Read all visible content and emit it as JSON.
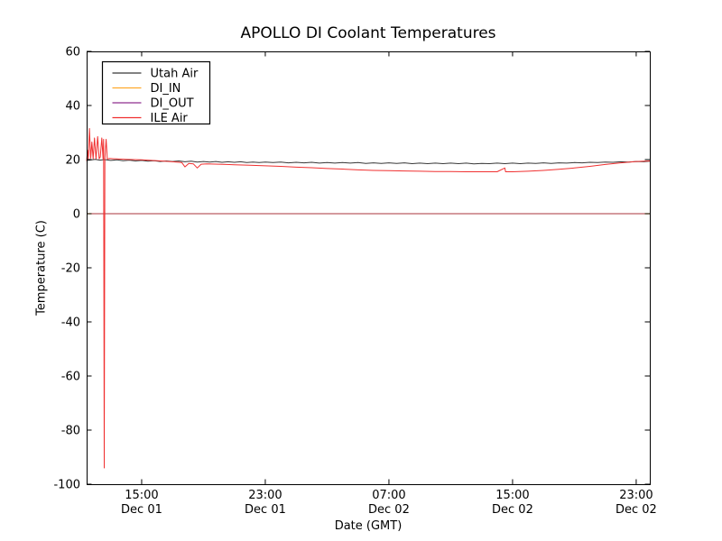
{
  "chart_data": {
    "type": "line",
    "title": "APOLLO DI Coolant Temperatures",
    "xlabel": "Date (GMT)",
    "ylabel": "Temperature (C)",
    "x_unit": "hours since Dec 01 00:00 GMT",
    "xlim": [
      11.44,
      47.88
    ],
    "ylim": [
      -100,
      60
    ],
    "grid": false,
    "frame_color": "#000000",
    "x_ticks": [
      {
        "hour": 15,
        "time": "15:00",
        "date": "Dec 01"
      },
      {
        "hour": 23,
        "time": "23:00",
        "date": "Dec 01"
      },
      {
        "hour": 31,
        "time": "07:00",
        "date": "Dec 02"
      },
      {
        "hour": 39,
        "time": "15:00",
        "date": "Dec 02"
      },
      {
        "hour": 47,
        "time": "23:00",
        "date": "Dec 02"
      }
    ],
    "y_ticks": [
      {
        "value": 60,
        "label": "60"
      },
      {
        "value": 40,
        "label": "40"
      },
      {
        "value": 20,
        "label": "20"
      },
      {
        "value": 0,
        "label": "0"
      },
      {
        "value": -20,
        "label": "-20"
      },
      {
        "value": -40,
        "label": "-40"
      },
      {
        "value": -60,
        "label": "-60"
      },
      {
        "value": -80,
        "label": "-80"
      },
      {
        "value": -100,
        "label": "-100"
      }
    ],
    "legend": {
      "position": "upper left",
      "entries": [
        {
          "label": "Utah Air",
          "color": "#383838"
        },
        {
          "label": "DI_IN",
          "color": "#ffa92b"
        },
        {
          "label": "DI_OUT",
          "color": "#8e2d8e"
        },
        {
          "label": "ILE Air",
          "color": "#f03030"
        }
      ]
    },
    "series": [
      {
        "name": "Utah Air",
        "color": "#383838",
        "width": 1,
        "opacity": 1,
        "points": [
          [
            11.5,
            19.7
          ],
          [
            12.0,
            20.1
          ],
          [
            12.3,
            19.8
          ],
          [
            12.6,
            20.0
          ],
          [
            13.0,
            19.7
          ],
          [
            13.4,
            19.9
          ],
          [
            13.8,
            19.6
          ],
          [
            14.2,
            19.8
          ],
          [
            14.6,
            19.5
          ],
          [
            15.0,
            19.7
          ],
          [
            15.4,
            19.4
          ],
          [
            15.8,
            19.6
          ],
          [
            16.2,
            19.3
          ],
          [
            16.6,
            19.5
          ],
          [
            17.0,
            19.3
          ],
          [
            17.4,
            19.5
          ],
          [
            17.8,
            19.2
          ],
          [
            18.2,
            19.4
          ],
          [
            18.6,
            19.1
          ],
          [
            19.0,
            19.3
          ],
          [
            19.4,
            19.1
          ],
          [
            19.8,
            19.3
          ],
          [
            20.2,
            19.0
          ],
          [
            20.6,
            19.2
          ],
          [
            21.0,
            19.0
          ],
          [
            21.4,
            19.2
          ],
          [
            21.8,
            18.9
          ],
          [
            22.2,
            19.1
          ],
          [
            22.6,
            18.9
          ],
          [
            23.0,
            19.1
          ],
          [
            23.5,
            18.9
          ],
          [
            24.0,
            19.1
          ],
          [
            24.5,
            18.8
          ],
          [
            25.0,
            19.0
          ],
          [
            25.5,
            18.8
          ],
          [
            26.0,
            19.0
          ],
          [
            26.5,
            18.7
          ],
          [
            27.0,
            18.9
          ],
          [
            27.5,
            18.7
          ],
          [
            28.0,
            18.9
          ],
          [
            28.5,
            18.7
          ],
          [
            29.0,
            18.9
          ],
          [
            29.5,
            18.6
          ],
          [
            30.0,
            18.8
          ],
          [
            30.5,
            18.6
          ],
          [
            31.0,
            18.8
          ],
          [
            31.5,
            18.6
          ],
          [
            32.0,
            18.8
          ],
          [
            32.5,
            18.5
          ],
          [
            33.0,
            18.7
          ],
          [
            33.5,
            18.5
          ],
          [
            34.0,
            18.7
          ],
          [
            34.5,
            18.5
          ],
          [
            35.0,
            18.7
          ],
          [
            35.5,
            18.5
          ],
          [
            36.0,
            18.7
          ],
          [
            36.5,
            18.4
          ],
          [
            37.0,
            18.6
          ],
          [
            37.5,
            18.5
          ],
          [
            38.0,
            18.7
          ],
          [
            38.5,
            18.5
          ],
          [
            39.0,
            18.7
          ],
          [
            39.5,
            18.5
          ],
          [
            40.0,
            18.7
          ],
          [
            40.5,
            18.6
          ],
          [
            41.0,
            18.8
          ],
          [
            41.5,
            18.6
          ],
          [
            42.0,
            18.8
          ],
          [
            42.5,
            18.7
          ],
          [
            43.0,
            18.9
          ],
          [
            43.5,
            18.8
          ],
          [
            44.0,
            19.0
          ],
          [
            44.5,
            18.9
          ],
          [
            45.0,
            19.1
          ],
          [
            45.5,
            19.0
          ],
          [
            46.0,
            19.2
          ],
          [
            46.5,
            19.1
          ],
          [
            47.0,
            19.3
          ],
          [
            47.5,
            19.2
          ],
          [
            47.9,
            19.4
          ]
        ]
      },
      {
        "name": "DI_IN",
        "color": "#ffa92b",
        "width": 1.2,
        "opacity": 1,
        "points": [
          [
            11.44,
            0
          ],
          [
            47.88,
            0
          ]
        ]
      },
      {
        "name": "DI_OUT",
        "color": "#8e2d8e",
        "width": 1,
        "opacity": 0.75,
        "points": [
          [
            11.44,
            0
          ],
          [
            47.88,
            0
          ]
        ]
      },
      {
        "name": "ILE Air",
        "color": "#f03030",
        "width": 1,
        "opacity": 1,
        "points": [
          [
            11.44,
            19.5
          ],
          [
            11.5,
            23.5
          ],
          [
            11.55,
            20.0
          ],
          [
            11.62,
            31.5
          ],
          [
            11.7,
            20.5
          ],
          [
            11.78,
            26.5
          ],
          [
            11.86,
            20.3
          ],
          [
            11.95,
            28.0
          ],
          [
            12.05,
            20.3
          ],
          [
            12.15,
            28.5
          ],
          [
            12.25,
            20.3
          ],
          [
            12.32,
            21.0
          ],
          [
            12.42,
            28.0
          ],
          [
            12.5,
            20.3
          ],
          [
            12.54,
            27.5
          ],
          [
            12.58,
            -94.0
          ],
          [
            12.62,
            20.5
          ],
          [
            12.7,
            27.5
          ],
          [
            12.78,
            20.2
          ],
          [
            12.9,
            20.4
          ],
          [
            13.2,
            20.3
          ],
          [
            14.0,
            20.1
          ],
          [
            15.0,
            19.9
          ],
          [
            16.0,
            19.6
          ],
          [
            17.0,
            19.2
          ],
          [
            17.6,
            18.9
          ],
          [
            17.8,
            17.3
          ],
          [
            18.05,
            18.6
          ],
          [
            18.35,
            18.4
          ],
          [
            18.6,
            16.9
          ],
          [
            18.85,
            18.3
          ],
          [
            19.2,
            18.4
          ],
          [
            20.0,
            18.3
          ],
          [
            21.0,
            18.1
          ],
          [
            22.0,
            17.9
          ],
          [
            23.0,
            17.7
          ],
          [
            24.0,
            17.5
          ],
          [
            25.0,
            17.2
          ],
          [
            26.0,
            17.0
          ],
          [
            27.0,
            16.7
          ],
          [
            28.0,
            16.5
          ],
          [
            29.0,
            16.2
          ],
          [
            30.0,
            16.0
          ],
          [
            31.0,
            15.9
          ],
          [
            32.0,
            15.8
          ],
          [
            33.0,
            15.7
          ],
          [
            34.0,
            15.6
          ],
          [
            35.0,
            15.6
          ],
          [
            36.0,
            15.5
          ],
          [
            37.0,
            15.5
          ],
          [
            38.0,
            15.5
          ],
          [
            38.5,
            16.9
          ],
          [
            38.55,
            15.5
          ],
          [
            39.0,
            15.5
          ],
          [
            40.0,
            15.7
          ],
          [
            41.0,
            16.0
          ],
          [
            42.0,
            16.4
          ],
          [
            43.0,
            16.9
          ],
          [
            44.0,
            17.5
          ],
          [
            45.0,
            18.2
          ],
          [
            46.0,
            18.8
          ],
          [
            47.0,
            19.3
          ],
          [
            47.88,
            19.5
          ]
        ]
      }
    ]
  }
}
